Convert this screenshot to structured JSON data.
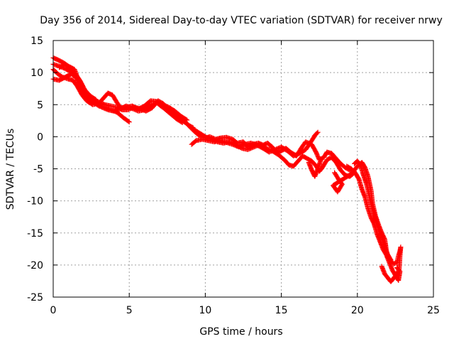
{
  "chart_data": {
    "type": "scatter",
    "title": "Day 356 of 2014, Sidereal Day-to-day VTEC variation (SDTVAR) for receiver nrwy",
    "xlabel": "GPS time / hours",
    "ylabel": "SDTVAR / TECUs",
    "xlim": [
      0,
      25
    ],
    "ylim": [
      -25,
      15
    ],
    "xticks": [
      0,
      5,
      10,
      15,
      20,
      25
    ],
    "yticks": [
      15,
      10,
      5,
      0,
      -5,
      -10,
      -15,
      -20,
      -25
    ],
    "xtick_labels": [
      "0",
      "5",
      "10",
      "15",
      "20",
      "25"
    ],
    "ytick_labels": [
      "15",
      "10",
      "5",
      "0",
      "-5",
      "-10",
      "-15",
      "-20",
      "-25"
    ],
    "grid": true,
    "marker": "+",
    "series": [
      {
        "name": "SDTVAR",
        "color": "#ff0000",
        "segments": [
          [
            [
              0.0,
              12.3
            ],
            [
              0.3,
              12.0
            ],
            [
              0.7,
              11.5
            ],
            [
              1.0,
              11.0
            ],
            [
              1.4,
              10.5
            ],
            [
              1.6,
              9.2
            ],
            [
              1.8,
              8.0
            ],
            [
              2.0,
              6.8
            ],
            [
              2.3,
              6.0
            ],
            [
              2.7,
              5.3
            ],
            [
              3.0,
              4.8
            ],
            [
              3.4,
              4.5
            ],
            [
              3.8,
              4.2
            ],
            [
              4.2,
              3.8
            ],
            [
              4.6,
              3.0
            ],
            [
              5.0,
              2.3
            ]
          ],
          [
            [
              0.0,
              10.5
            ],
            [
              0.3,
              9.8
            ],
            [
              0.6,
              9.3
            ],
            [
              1.0,
              9.0
            ],
            [
              1.3,
              8.8
            ],
            [
              1.6,
              7.8
            ],
            [
              1.9,
              6.5
            ],
            [
              2.2,
              5.6
            ],
            [
              2.6,
              5.0
            ],
            [
              3.0,
              5.2
            ],
            [
              3.3,
              6.0
            ],
            [
              3.6,
              6.8
            ],
            [
              3.9,
              6.5
            ],
            [
              4.2,
              5.3
            ],
            [
              4.5,
              4.2
            ],
            [
              4.9,
              4.2
            ],
            [
              5.3,
              4.6
            ],
            [
              5.7,
              4.4
            ],
            [
              6.1,
              4.0
            ],
            [
              6.5,
              4.5
            ],
            [
              6.9,
              5.6
            ],
            [
              7.2,
              5.2
            ],
            [
              7.5,
              4.6
            ],
            [
              7.8,
              3.8
            ],
            [
              8.2,
              3.3
            ],
            [
              8.6,
              2.5
            ],
            [
              8.9,
              1.8
            ],
            [
              9.2,
              1.4
            ]
          ],
          [
            [
              0.0,
              11.3
            ],
            [
              0.4,
              11.0
            ],
            [
              0.8,
              10.6
            ],
            [
              1.2,
              10.1
            ],
            [
              1.5,
              9.5
            ],
            [
              1.8,
              8.6
            ],
            [
              2.1,
              7.2
            ],
            [
              2.5,
              6.2
            ],
            [
              2.9,
              5.5
            ],
            [
              3.4,
              5.0
            ],
            [
              3.8,
              4.8
            ],
            [
              4.3,
              4.5
            ],
            [
              4.8,
              4.6
            ],
            [
              5.2,
              4.8
            ],
            [
              5.6,
              4.3
            ],
            [
              6.0,
              4.8
            ],
            [
              6.4,
              5.6
            ],
            [
              6.8,
              5.5
            ],
            [
              7.2,
              5.0
            ],
            [
              7.6,
              4.6
            ],
            [
              8.0,
              4.0
            ],
            [
              8.4,
              3.2
            ],
            [
              8.8,
              2.6
            ]
          ],
          [
            [
              0.0,
              9.0
            ],
            [
              0.4,
              8.8
            ],
            [
              0.8,
              9.3
            ],
            [
              1.2,
              9.8
            ],
            [
              1.5,
              9.2
            ],
            [
              1.8,
              8.0
            ],
            [
              2.1,
              6.7
            ],
            [
              2.4,
              5.8
            ],
            [
              2.8,
              5.3
            ],
            [
              3.2,
              4.6
            ],
            [
              3.6,
              4.2
            ],
            [
              4.0,
              4.0
            ],
            [
              4.4,
              4.3
            ],
            [
              4.8,
              4.8
            ],
            [
              5.2,
              4.4
            ],
            [
              5.6,
              4.0
            ],
            [
              6.0,
              4.2
            ],
            [
              6.4,
              4.9
            ],
            [
              6.8,
              5.3
            ],
            [
              7.3,
              4.4
            ],
            [
              7.7,
              3.6
            ],
            [
              8.1,
              2.8
            ],
            [
              8.5,
              2.2
            ]
          ],
          [
            [
              0.4,
              10.8
            ],
            [
              0.8,
              11.3
            ],
            [
              1.1,
              10.6
            ],
            [
              1.4,
              9.9
            ],
            [
              1.7,
              9.0
            ],
            [
              2.0,
              7.5
            ],
            [
              2.4,
              6.4
            ],
            [
              2.8,
              5.8
            ]
          ],
          [
            [
              8.5,
              2.5
            ],
            [
              8.8,
              2.0
            ],
            [
              9.0,
              1.5
            ],
            [
              9.3,
              0.8
            ],
            [
              9.6,
              0.2
            ],
            [
              10.0,
              -0.2
            ],
            [
              10.3,
              0.0
            ],
            [
              10.7,
              -0.4
            ],
            [
              11.0,
              -0.2
            ],
            [
              11.4,
              -0.1
            ],
            [
              11.8,
              -0.4
            ],
            [
              12.1,
              -1.0
            ],
            [
              12.5,
              -0.8
            ],
            [
              12.8,
              -1.6
            ],
            [
              13.1,
              -1.2
            ],
            [
              13.5,
              -1.0
            ],
            [
              13.8,
              -1.3
            ],
            [
              14.1,
              -1.0
            ],
            [
              14.4,
              -1.6
            ],
            [
              14.7,
              -2.5
            ],
            [
              15.0,
              -2.2
            ],
            [
              15.3,
              -1.8
            ],
            [
              15.6,
              -2.4
            ],
            [
              16.0,
              -3.0
            ],
            [
              16.3,
              -1.8
            ],
            [
              16.6,
              -0.8
            ],
            [
              17.0,
              -1.2
            ],
            [
              17.3,
              -2.5
            ],
            [
              17.5,
              -3.6
            ],
            [
              17.8,
              -3.2
            ],
            [
              18.0,
              -2.4
            ],
            [
              18.3,
              -2.6
            ],
            [
              18.6,
              -3.4
            ],
            [
              18.9,
              -4.2
            ],
            [
              19.2,
              -4.8
            ],
            [
              19.5,
              -5.2
            ],
            [
              19.8,
              -5.4
            ]
          ],
          [
            [
              9.2,
              1.2
            ],
            [
              9.6,
              0.6
            ],
            [
              10.0,
              0.0
            ],
            [
              10.4,
              -0.4
            ],
            [
              10.8,
              -0.8
            ],
            [
              11.2,
              -1.0
            ],
            [
              11.6,
              -0.8
            ],
            [
              12.0,
              -1.2
            ],
            [
              12.4,
              -1.8
            ],
            [
              12.8,
              -2.0
            ],
            [
              13.2,
              -1.6
            ],
            [
              13.6,
              -1.2
            ],
            [
              14.0,
              -1.8
            ],
            [
              14.4,
              -2.2
            ],
            [
              14.8,
              -2.8
            ],
            [
              15.2,
              -3.6
            ],
            [
              15.5,
              -4.4
            ],
            [
              15.8,
              -4.6
            ],
            [
              16.1,
              -3.8
            ],
            [
              16.4,
              -3.0
            ],
            [
              16.7,
              -3.4
            ],
            [
              17.0,
              -3.8
            ],
            [
              17.3,
              -4.6
            ],
            [
              17.5,
              -5.4
            ],
            [
              17.7,
              -4.8
            ],
            [
              18.0,
              -3.6
            ],
            [
              18.3,
              -3.2
            ],
            [
              18.6,
              -4.0
            ],
            [
              18.9,
              -5.2
            ],
            [
              19.2,
              -6.0
            ],
            [
              19.5,
              -6.2
            ],
            [
              19.8,
              -5.6
            ]
          ],
          [
            [
              9.1,
              -1.2
            ],
            [
              9.4,
              -0.6
            ],
            [
              9.8,
              -0.4
            ],
            [
              10.2,
              -0.6
            ],
            [
              10.6,
              -0.8
            ],
            [
              11.0,
              -0.6
            ],
            [
              11.4,
              -0.9
            ],
            [
              11.8,
              -1.2
            ],
            [
              12.2,
              -1.6
            ],
            [
              12.6,
              -1.2
            ],
            [
              13.0,
              -1.0
            ],
            [
              13.4,
              -1.3
            ],
            [
              13.8,
              -1.8
            ],
            [
              14.2,
              -2.4
            ],
            [
              14.6,
              -2.0
            ],
            [
              15.0,
              -1.6
            ],
            [
              15.4,
              -2.2
            ],
            [
              15.8,
              -3.0
            ],
            [
              16.2,
              -2.6
            ],
            [
              16.6,
              -2.0
            ],
            [
              16.9,
              -1.0
            ],
            [
              17.2,
              0.2
            ],
            [
              17.4,
              0.7
            ]
          ],
          [
            [
              16.8,
              -4.0
            ],
            [
              17.0,
              -5.2
            ],
            [
              17.2,
              -6.2
            ],
            [
              17.4,
              -5.0
            ],
            [
              17.6,
              -3.6
            ]
          ],
          [
            [
              18.5,
              -5.6
            ],
            [
              18.8,
              -6.8
            ],
            [
              19.0,
              -7.4
            ],
            [
              18.7,
              -8.6
            ],
            [
              18.4,
              -7.6
            ],
            [
              18.8,
              -7.0
            ],
            [
              19.2,
              -6.4
            ],
            [
              19.6,
              -5.8
            ],
            [
              20.0,
              -4.6
            ],
            [
              20.3,
              -4.0
            ],
            [
              20.5,
              -4.8
            ],
            [
              20.7,
              -6.2
            ],
            [
              20.9,
              -8.4
            ],
            [
              21.0,
              -10.4
            ],
            [
              21.2,
              -12.4
            ],
            [
              21.4,
              -13.8
            ],
            [
              21.6,
              -15.0
            ],
            [
              21.8,
              -16.0
            ],
            [
              21.9,
              -17.6
            ],
            [
              22.0,
              -18.8
            ],
            [
              22.2,
              -19.4
            ],
            [
              22.4,
              -19.8
            ],
            [
              22.6,
              -19.6
            ],
            [
              22.7,
              -18.6
            ],
            [
              22.8,
              -17.8
            ],
            [
              22.85,
              -17.2
            ],
            [
              22.8,
              -18.6
            ],
            [
              22.75,
              -20.6
            ],
            [
              22.6,
              -21.4
            ],
            [
              22.4,
              -22.0
            ],
            [
              22.2,
              -22.6
            ],
            [
              22.0,
              -22.0
            ],
            [
              21.8,
              -21.4
            ],
            [
              21.6,
              -20.2
            ]
          ],
          [
            [
              19.3,
              -4.6
            ],
            [
              19.6,
              -5.0
            ],
            [
              19.9,
              -5.8
            ],
            [
              20.1,
              -6.6
            ],
            [
              20.3,
              -8.2
            ],
            [
              20.5,
              -9.4
            ],
            [
              20.7,
              -11.2
            ],
            [
              20.9,
              -12.6
            ],
            [
              21.1,
              -13.6
            ],
            [
              21.3,
              -15.2
            ],
            [
              21.5,
              -16.4
            ],
            [
              21.7,
              -17.6
            ],
            [
              21.9,
              -18.4
            ],
            [
              22.1,
              -19.6
            ],
            [
              22.3,
              -20.8
            ],
            [
              22.5,
              -21.6
            ],
            [
              22.7,
              -22.4
            ],
            [
              22.8,
              -21.0
            ],
            [
              22.6,
              -20.4
            ]
          ],
          [
            [
              19.8,
              -4.2
            ],
            [
              20.0,
              -3.8
            ],
            [
              20.2,
              -4.4
            ],
            [
              20.4,
              -6.0
            ],
            [
              20.6,
              -7.4
            ],
            [
              20.8,
              -9.4
            ],
            [
              21.0,
              -11.2
            ],
            [
              21.2,
              -12.8
            ],
            [
              21.4,
              -14.4
            ],
            [
              21.6,
              -15.6
            ],
            [
              21.8,
              -17.2
            ],
            [
              22.0,
              -18.4
            ],
            [
              22.2,
              -19.2
            ]
          ]
        ]
      }
    ]
  }
}
